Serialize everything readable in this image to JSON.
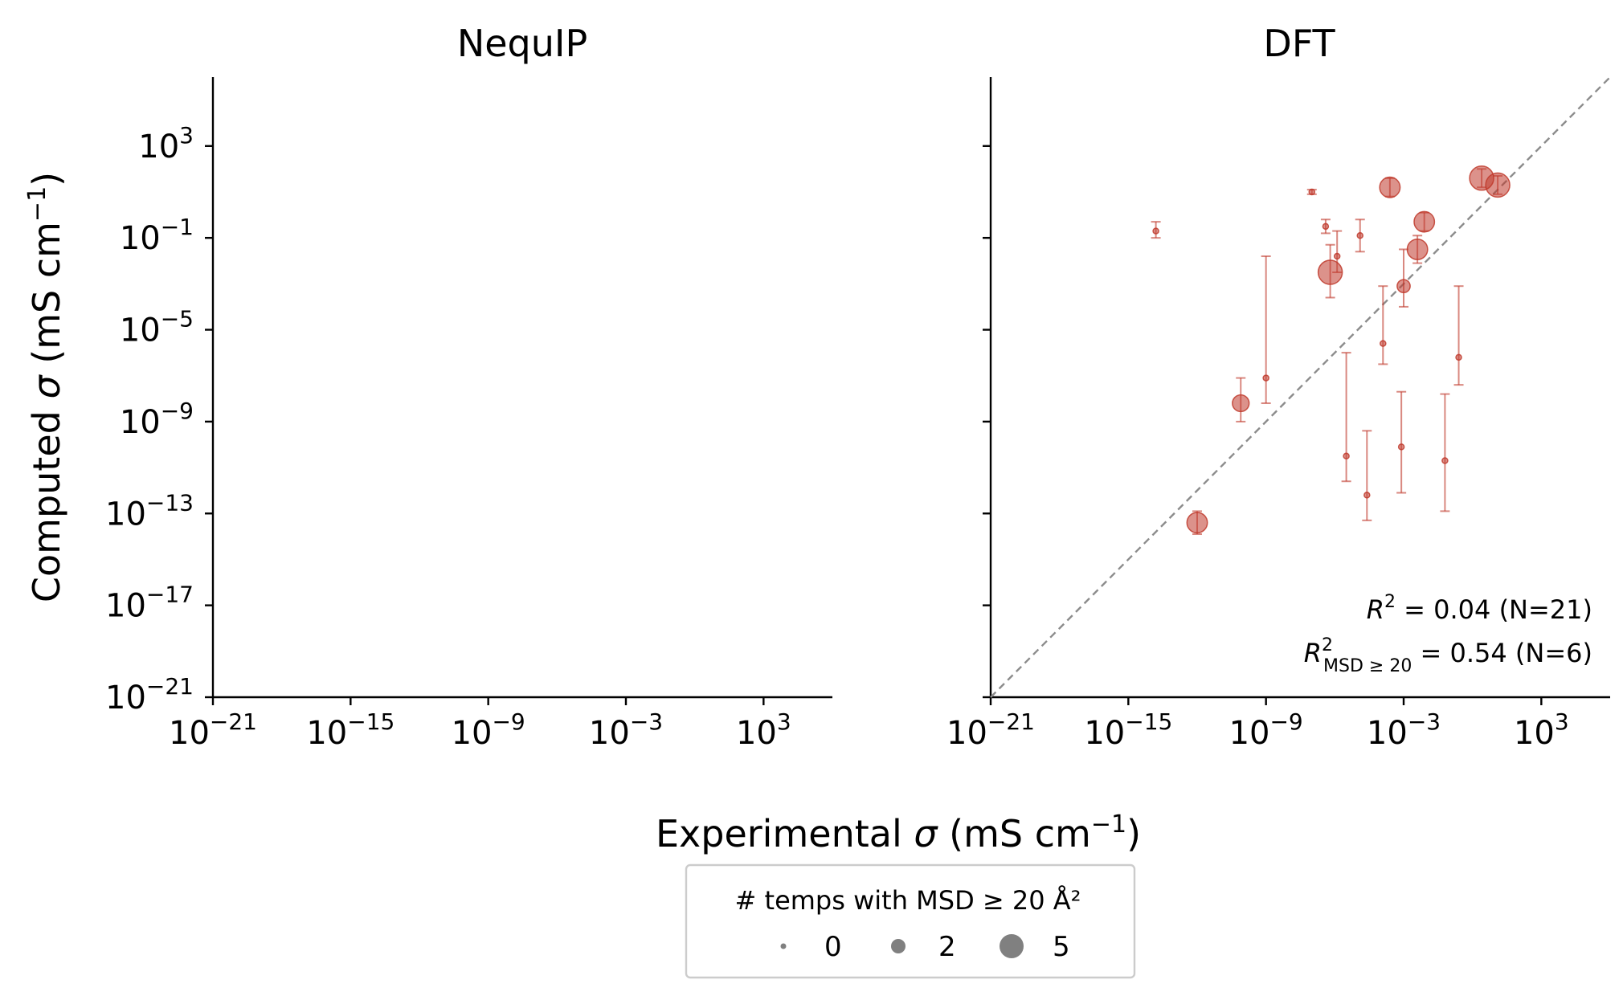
{
  "figure": {
    "xlabel_text": "Experimental ",
    "xlabel_sym": "σ",
    "xlabel_unit": " (mS cm",
    "xlabel_sup": "−1",
    "xlabel_close": ")",
    "ylabel_text": "Computed ",
    "ylabel_sym": "σ",
    "ylabel_unit": " (mS cm",
    "ylabel_sup": "−1",
    "ylabel_close": ")"
  },
  "legend": {
    "title": "# temps with MSD ≥ 20 Å²",
    "items": [
      {
        "label": "0"
      },
      {
        "label": "2"
      },
      {
        "label": "5"
      }
    ]
  },
  "chart_data": [
    {
      "type": "scatter",
      "title": "NequIP",
      "x_scale": "log",
      "y_scale": "log",
      "xlim_exp": [
        -21,
        6
      ],
      "ylim_exp": [
        -21,
        6
      ],
      "xticks": [
        {
          "base": "10",
          "exp": "−21"
        },
        {
          "base": "10",
          "exp": "−15"
        },
        {
          "base": "10",
          "exp": "−9"
        },
        {
          "base": "10",
          "exp": "−3"
        },
        {
          "base": "10",
          "exp": "3"
        }
      ],
      "yticks": [
        {
          "base": "10",
          "exp": "−21"
        },
        {
          "base": "10",
          "exp": "−17"
        },
        {
          "base": "10",
          "exp": "−13"
        },
        {
          "base": "10",
          "exp": "−9"
        },
        {
          "base": "10",
          "exp": "−5"
        },
        {
          "base": "10",
          "exp": "−1"
        },
        {
          "base": "10",
          "exp": "3"
        }
      ],
      "points": []
    },
    {
      "type": "scatter",
      "title": "DFT",
      "x_scale": "log",
      "y_scale": "log",
      "xlim_exp": [
        -21,
        6
      ],
      "ylim_exp": [
        -21,
        6
      ],
      "xticks": [
        {
          "base": "10",
          "exp": "−21"
        },
        {
          "base": "10",
          "exp": "−15"
        },
        {
          "base": "10",
          "exp": "−9"
        },
        {
          "base": "10",
          "exp": "−3"
        },
        {
          "base": "10",
          "exp": "3"
        }
      ],
      "diagonal": true,
      "color": "#c0392b",
      "annotation": {
        "r2": "R",
        "r2_sup": "2",
        "r2_value": " = 0.04  (N=21)",
        "r2msd": "R",
        "r2msd_sup": "2",
        "r2msd_sub": "MSD ≥ 20",
        "r2msd_value": " = 0.54  (N=6)"
      },
      "points": [
        {
          "log_x": -13.8,
          "log_y": -0.7,
          "y_lo": -1.0,
          "y_hi": -0.3,
          "msd_count": 0
        },
        {
          "log_x": -12.0,
          "log_y": -13.4,
          "y_lo": -13.9,
          "y_hi": -12.9,
          "msd_count": 4
        },
        {
          "log_x": -10.1,
          "log_y": -8.2,
          "y_lo": -9.0,
          "y_hi": -7.1,
          "msd_count": 3
        },
        {
          "log_x": -9.0,
          "log_y": -7.1,
          "y_lo": -8.2,
          "y_hi": -1.8,
          "msd_count": 0
        },
        {
          "log_x": -7.0,
          "log_y": 1.0,
          "y_lo": 0.9,
          "y_hi": 1.1,
          "msd_count": 0
        },
        {
          "log_x": -6.4,
          "log_y": -0.5,
          "y_lo": -0.8,
          "y_hi": -0.2,
          "msd_count": 0
        },
        {
          "log_x": -6.2,
          "log_y": -2.5,
          "y_lo": -3.6,
          "y_hi": -1.3,
          "msd_count": 5
        },
        {
          "log_x": -5.9,
          "log_y": -1.8,
          "y_lo": -2.5,
          "y_hi": -0.7,
          "msd_count": 0
        },
        {
          "log_x": -5.5,
          "log_y": -10.5,
          "y_lo": -11.6,
          "y_hi": -6.0,
          "msd_count": 0
        },
        {
          "log_x": -4.9,
          "log_y": -0.9,
          "y_lo": -1.6,
          "y_hi": -0.2,
          "msd_count": 0
        },
        {
          "log_x": -4.6,
          "log_y": -12.2,
          "y_lo": -13.3,
          "y_hi": -9.4,
          "msd_count": 0
        },
        {
          "log_x": -3.9,
          "log_y": -5.6,
          "y_lo": -6.5,
          "y_hi": -3.1,
          "msd_count": 0
        },
        {
          "log_x": -3.6,
          "log_y": 1.2,
          "y_lo": 0.8,
          "y_hi": 1.6,
          "msd_count": 4
        },
        {
          "log_x": -3.1,
          "log_y": -10.1,
          "y_lo": -12.1,
          "y_hi": -7.7,
          "msd_count": 0
        },
        {
          "log_x": -3.0,
          "log_y": -3.1,
          "y_lo": -4.0,
          "y_hi": -1.5,
          "msd_count": 2
        },
        {
          "log_x": -2.4,
          "log_y": -1.5,
          "y_lo": -2.1,
          "y_hi": -0.9,
          "msd_count": 4
        },
        {
          "log_x": -2.1,
          "log_y": -0.3,
          "y_lo": -0.7,
          "y_hi": 0.1,
          "msd_count": 4
        },
        {
          "log_x": -1.2,
          "log_y": -10.7,
          "y_lo": -12.9,
          "y_hi": -7.8,
          "msd_count": 0
        },
        {
          "log_x": -0.6,
          "log_y": -6.2,
          "y_lo": -7.4,
          "y_hi": -3.1,
          "msd_count": 0
        },
        {
          "log_x": 0.4,
          "log_y": 1.6,
          "y_lo": 1.2,
          "y_hi": 2.0,
          "msd_count": 5
        },
        {
          "log_x": 1.1,
          "log_y": 1.3,
          "y_lo": 0.9,
          "y_hi": 1.7,
          "msd_count": 5
        }
      ]
    }
  ]
}
